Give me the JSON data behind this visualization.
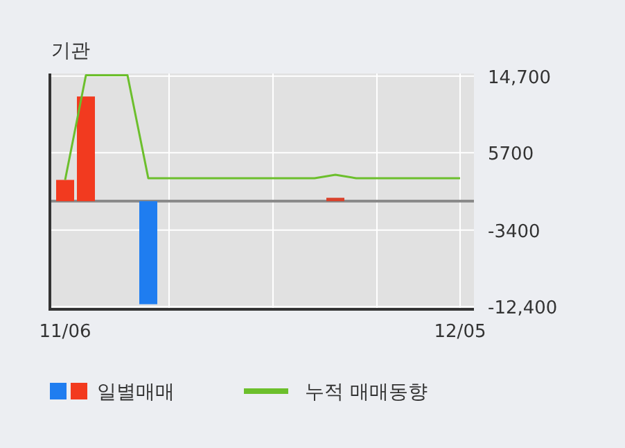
{
  "chart_data": {
    "type": "bar",
    "title": "기관",
    "categories": [
      "11/06",
      null,
      null,
      null,
      null,
      null,
      null,
      null,
      null,
      null,
      null,
      null,
      null,
      null,
      null,
      null,
      null,
      null,
      null,
      "12/05"
    ],
    "series": [
      {
        "name": "일별매매",
        "colors": [
          "#f23a1f",
          "#f23a1f",
          null,
          null,
          "#1f7df0",
          null,
          null,
          null,
          null,
          null,
          null,
          null,
          null,
          "#d9412b",
          null,
          null,
          null,
          null,
          null,
          null
        ],
        "values": [
          2500,
          12300,
          null,
          null,
          -12100,
          null,
          null,
          null,
          null,
          null,
          null,
          null,
          null,
          400,
          null,
          null,
          null,
          null,
          null,
          null
        ]
      },
      {
        "name": "누적 매매동향",
        "type": "line",
        "color": "#6cbf2c",
        "values": [
          2500,
          14800,
          14800,
          14800,
          2700,
          2700,
          2700,
          2700,
          2700,
          2700,
          2700,
          2700,
          2700,
          3100,
          2700,
          2700,
          2700,
          2700,
          2700,
          2700
        ]
      }
    ],
    "ylim": [
      -12700,
      15000
    ],
    "yticks": [
      {
        "value": 14700,
        "label": "14,700"
      },
      5700,
      {
        "value": -3400,
        "label": "-3400"
      },
      {
        "value": -12400,
        "label": "-12,400"
      }
    ],
    "ref_lines": [
      {
        "axis": "y",
        "value": 0,
        "color": "#8a8a8a"
      }
    ],
    "grid": true,
    "legend": "bottom",
    "marker": "none",
    "line_style": "solid"
  }
}
